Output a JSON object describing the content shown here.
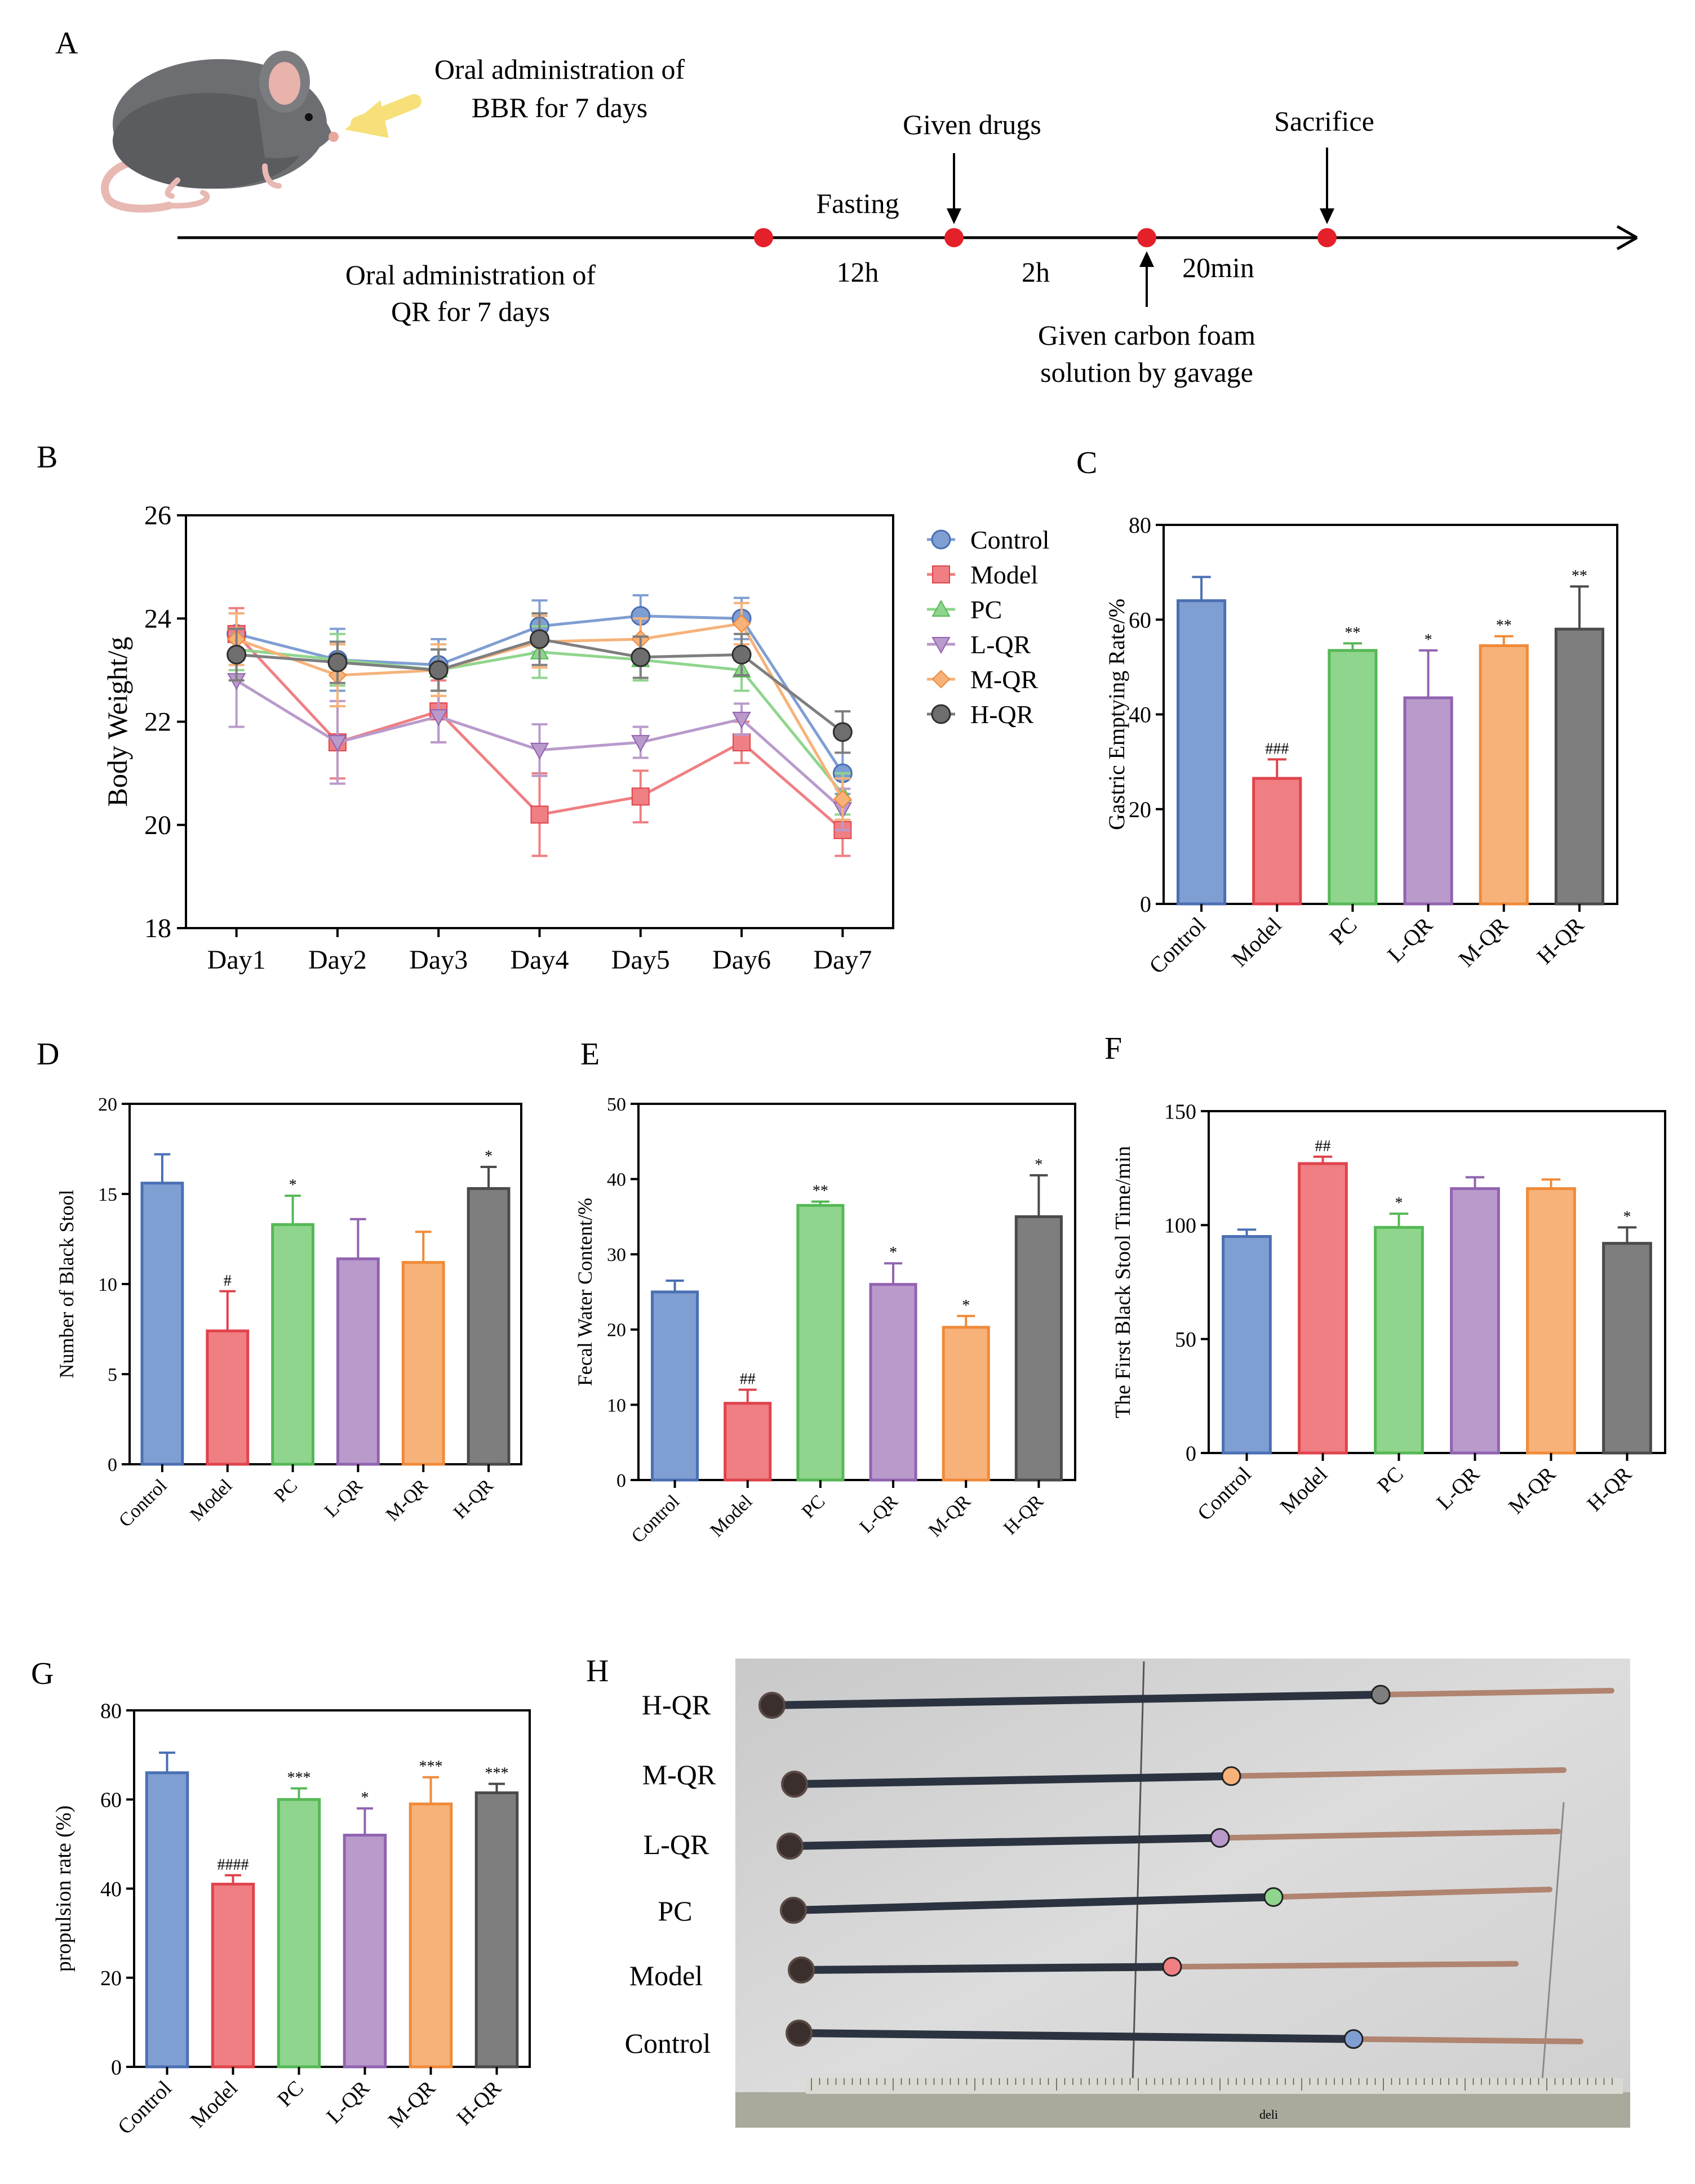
{
  "panels": {
    "A": "A",
    "B": "B",
    "C": "C",
    "D": "D",
    "E": "E",
    "F": "F",
    "G": "G",
    "H": "H"
  },
  "colors": {
    "Control": "#7f9ed2",
    "Model": "#ef7f82",
    "PC": "#8fd58d",
    "L-QR": "#b99acb",
    "M-QR": "#f6b279",
    "H-QR": "#7e7e7e"
  },
  "colors_dark": {
    "Control": "#4a6fb3",
    "Model": "#e0434c",
    "PC": "#55b855",
    "L-QR": "#9163b0",
    "M-QR": "#f08a38",
    "H-QR": "#4a4a4a"
  },
  "timeline": {
    "mouse_caption_1": "Oral administration of",
    "mouse_caption_2": "BBR for 7 days",
    "below_1": "Oral administration of",
    "below_2": "QR for 7 days",
    "fasting": "Fasting",
    "fasting_time": "12h",
    "given_drugs": "Given drugs",
    "drugs_time": "2h",
    "sacrifice": "Sacrifice",
    "sacrifice_time": "20min",
    "carbon_1": "Given carbon foam",
    "carbon_2": "solution by gavage"
  },
  "chart_data": [
    {
      "panel": "B",
      "type": "line",
      "title": "",
      "xlabel": "",
      "ylabel": "Body Weight/g",
      "categories": [
        "Day1",
        "Day2",
        "Day3",
        "Day4",
        "Day5",
        "Day6",
        "Day7"
      ],
      "ylim": [
        18,
        26
      ],
      "yticks": [
        18,
        20,
        22,
        24,
        26
      ],
      "legend": "right",
      "series": [
        {
          "name": "Control",
          "marker": "circle",
          "values": [
            23.7,
            23.2,
            23.1,
            23.85,
            24.05,
            24.0,
            21.0
          ],
          "err": [
            0.4,
            0.6,
            0.5,
            0.5,
            0.4,
            0.4,
            0.4
          ]
        },
        {
          "name": "Model",
          "marker": "square",
          "values": [
            23.7,
            21.6,
            22.2,
            20.2,
            20.55,
            21.6,
            19.9
          ],
          "err": [
            0.5,
            0.7,
            0.6,
            0.8,
            0.5,
            0.4,
            0.5
          ]
        },
        {
          "name": "PC",
          "marker": "triangle-up",
          "values": [
            23.4,
            23.2,
            23.0,
            23.35,
            23.2,
            23.0,
            20.6
          ],
          "err": [
            0.4,
            0.5,
            0.4,
            0.5,
            0.4,
            0.4,
            0.4
          ]
        },
        {
          "name": "L-QR",
          "marker": "triangle-down",
          "values": [
            22.8,
            21.6,
            22.1,
            21.45,
            21.6,
            22.05,
            20.3
          ],
          "err": [
            0.9,
            0.8,
            0.5,
            0.5,
            0.3,
            0.3,
            0.4
          ]
        },
        {
          "name": "M-QR",
          "marker": "diamond",
          "values": [
            23.6,
            22.9,
            23.0,
            23.55,
            23.6,
            23.9,
            20.5
          ],
          "err": [
            0.5,
            0.6,
            0.5,
            0.5,
            0.4,
            0.4,
            0.4
          ]
        },
        {
          "name": "H-QR",
          "marker": "circle",
          "values": [
            23.3,
            23.15,
            23.0,
            23.6,
            23.25,
            23.3,
            21.8
          ],
          "err": [
            0.5,
            0.4,
            0.4,
            0.5,
            0.4,
            0.4,
            0.4
          ]
        }
      ]
    },
    {
      "panel": "C",
      "type": "bar",
      "title": "",
      "xlabel": "",
      "ylabel": "Gastric Emptying Rate/%",
      "categories": [
        "Control",
        "Model",
        "PC",
        "L-QR",
        "M-QR",
        "H-QR"
      ],
      "values": [
        64,
        26.5,
        53.5,
        43.5,
        54.5,
        58
      ],
      "err": [
        5,
        4,
        1.5,
        10,
        2,
        9
      ],
      "annotations": [
        "",
        "###",
        "**",
        "*",
        "**",
        "**"
      ],
      "ylim": [
        0,
        80
      ],
      "yticks": [
        0,
        20,
        40,
        60,
        80
      ]
    },
    {
      "panel": "D",
      "type": "bar",
      "title": "",
      "xlabel": "",
      "ylabel": "Number of Black Stool",
      "categories": [
        "Control",
        "Model",
        "PC",
        "L-QR",
        "M-QR",
        "H-QR"
      ],
      "values": [
        15.6,
        7.4,
        13.3,
        11.4,
        11.2,
        15.3
      ],
      "err": [
        1.6,
        2.2,
        1.6,
        2.2,
        1.7,
        1.2
      ],
      "annotations": [
        "",
        "#",
        "*",
        "",
        "",
        "*"
      ],
      "ylim": [
        0,
        20
      ],
      "yticks": [
        0,
        5,
        10,
        15,
        20
      ]
    },
    {
      "panel": "E",
      "type": "bar",
      "title": "",
      "xlabel": "",
      "ylabel": "Fecal Water Content/%",
      "categories": [
        "Control",
        "Model",
        "PC",
        "L-QR",
        "M-QR",
        "H-QR"
      ],
      "values": [
        25,
        10.2,
        36.5,
        26,
        20.3,
        35
      ],
      "err": [
        1.5,
        1.8,
        0.5,
        2.8,
        1.5,
        5.5
      ],
      "annotations": [
        "",
        "##",
        "**",
        "*",
        "*",
        "*"
      ],
      "ylim": [
        0,
        50
      ],
      "yticks": [
        0,
        10,
        20,
        30,
        40,
        50
      ]
    },
    {
      "panel": "F",
      "type": "bar",
      "title": "",
      "xlabel": "",
      "ylabel": "The First Black Stool Time/min",
      "categories": [
        "Control",
        "Model",
        "PC",
        "L-QR",
        "M-QR",
        "H-QR"
      ],
      "values": [
        95,
        127,
        99,
        116,
        116,
        92
      ],
      "err": [
        3,
        3,
        6,
        5,
        4,
        7
      ],
      "annotations": [
        "",
        "##",
        "*",
        "",
        "",
        "*"
      ],
      "ylim": [
        0,
        150
      ],
      "yticks": [
        0,
        50,
        100,
        150
      ]
    },
    {
      "panel": "G",
      "type": "bar",
      "title": "",
      "xlabel": "",
      "ylabel": "propulsion rate (%)",
      "categories": [
        "Control",
        "Model",
        "PC",
        "L-QR",
        "M-QR",
        "H-QR"
      ],
      "values": [
        66,
        41,
        60,
        52,
        59,
        61.5
      ],
      "err": [
        4.5,
        2,
        2.5,
        6,
        6,
        2
      ],
      "annotations": [
        "",
        "####",
        "***",
        "*",
        "***",
        "***"
      ],
      "ylim": [
        0,
        80
      ],
      "yticks": [
        0,
        20,
        40,
        60,
        80
      ]
    }
  ],
  "photo": {
    "labels": [
      "H-QR",
      "M-QR",
      "L-QR",
      "PC",
      "Model",
      "Control"
    ],
    "ruler_brand": "deli"
  }
}
